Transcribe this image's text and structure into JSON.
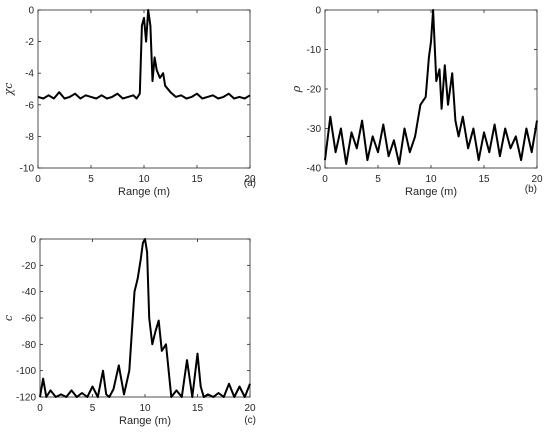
{
  "chart_data": [
    {
      "type": "line",
      "panel": "(a)",
      "xlabel": "Range (m)",
      "ylabel": "χc",
      "xlim": [
        0,
        20
      ],
      "ylim": [
        -10,
        0
      ],
      "xticks": [
        0,
        5,
        10,
        15,
        20
      ],
      "yticks": [
        0,
        -2,
        -4,
        -6,
        -8,
        -10
      ],
      "series": [
        {
          "x": [
            0,
            0.5,
            1,
            1.5,
            2,
            2.5,
            3,
            3.5,
            4,
            4.5,
            5,
            5.5,
            6,
            6.5,
            7,
            7.5,
            8,
            8.5,
            9,
            9.3,
            9.6,
            9.8,
            10,
            10.2,
            10.4,
            10.6,
            10.8,
            11,
            11.2,
            11.5,
            11.8,
            12,
            12.5,
            13,
            13.5,
            14,
            14.5,
            15,
            15.5,
            16,
            16.5,
            17,
            17.5,
            18,
            18.5,
            19,
            19.5,
            20
          ],
          "y": [
            -5.5,
            -5.6,
            -5.4,
            -5.6,
            -5.2,
            -5.6,
            -5.5,
            -5.3,
            -5.6,
            -5.4,
            -5.5,
            -5.6,
            -5.4,
            -5.6,
            -5.5,
            -5.3,
            -5.6,
            -5.5,
            -5.4,
            -5.6,
            -5.3,
            -1,
            -0.5,
            -2,
            0,
            -1,
            -4.5,
            -3,
            -3.8,
            -4.3,
            -4,
            -4.8,
            -5.2,
            -5.5,
            -5.4,
            -5.6,
            -5.5,
            -5.3,
            -5.6,
            -5.5,
            -5.4,
            -5.6,
            -5.5,
            -5.3,
            -5.6,
            -5.5,
            -5.6,
            -5.4
          ]
        }
      ]
    },
    {
      "type": "line",
      "panel": "(b)",
      "xlabel": "Range (m)",
      "ylabel": "ρ",
      "xlim": [
        0,
        20
      ],
      "ylim": [
        -40,
        0
      ],
      "xticks": [
        0,
        5,
        10,
        15,
        20
      ],
      "yticks": [
        0,
        -10,
        -20,
        -30,
        -40
      ],
      "series": [
        {
          "x": [
            0,
            0.5,
            1,
            1.5,
            2,
            2.5,
            3,
            3.5,
            4,
            4.5,
            5,
            5.5,
            6,
            6.5,
            7,
            7.5,
            8,
            8.5,
            9,
            9.5,
            9.8,
            10,
            10.2,
            10.5,
            10.8,
            11,
            11.3,
            11.6,
            12,
            12.3,
            12.6,
            13,
            13.5,
            14,
            14.5,
            15,
            15.5,
            16,
            16.5,
            17,
            17.5,
            18,
            18.5,
            19,
            19.5,
            20
          ],
          "y": [
            -38,
            -27,
            -36,
            -30,
            -39,
            -31,
            -35,
            -28,
            -38,
            -32,
            -36,
            -29,
            -37,
            -33,
            -39,
            -30,
            -36,
            -32,
            -24,
            -22,
            -12,
            -8,
            0,
            -18,
            -15,
            -25,
            -14,
            -24,
            -16,
            -28,
            -32,
            -27,
            -35,
            -30,
            -38,
            -31,
            -36,
            -29,
            -37,
            -30,
            -35,
            -32,
            -38,
            -30,
            -36,
            -28
          ]
        }
      ]
    },
    {
      "type": "line",
      "panel": "(c)",
      "xlabel": "Range (m)",
      "ylabel": "c",
      "xlim": [
        0,
        20
      ],
      "ylim": [
        -120,
        0
      ],
      "xticks": [
        0,
        5,
        10,
        15,
        20
      ],
      "yticks": [
        0,
        -20,
        -40,
        -60,
        -80,
        -100,
        -120
      ],
      "series": [
        {
          "x": [
            0,
            0.3,
            0.6,
            1,
            1.5,
            2,
            2.5,
            3,
            3.5,
            4,
            4.5,
            5,
            5.5,
            6,
            6.3,
            6.6,
            7,
            7.5,
            8,
            8.5,
            9,
            9.3,
            9.6,
            9.8,
            10,
            10.2,
            10.4,
            10.7,
            11,
            11.3,
            11.6,
            12,
            12.5,
            13,
            13.5,
            14,
            14.5,
            15,
            15.3,
            15.6,
            16,
            16.5,
            17,
            17.5,
            18,
            18.5,
            19,
            19.5,
            20
          ],
          "y": [
            -120,
            -106,
            -120,
            -115,
            -120,
            -118,
            -120,
            -115,
            -120,
            -117,
            -120,
            -112,
            -120,
            -100,
            -118,
            -120,
            -114,
            -96,
            -118,
            -100,
            -40,
            -30,
            -15,
            -3,
            0,
            -10,
            -60,
            -80,
            -70,
            -62,
            -85,
            -80,
            -120,
            -115,
            -120,
            -92,
            -120,
            -87,
            -112,
            -120,
            -118,
            -120,
            -117,
            -120,
            -110,
            -120,
            -112,
            -120,
            -110
          ]
        }
      ]
    }
  ]
}
